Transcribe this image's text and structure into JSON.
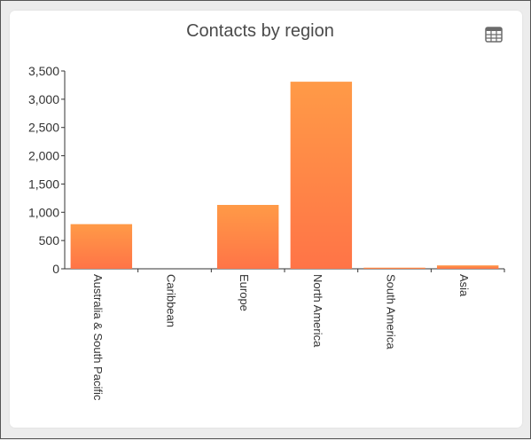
{
  "widget": {
    "table_toggle_icon": "table-grid-icon"
  },
  "chart_data": {
    "type": "bar",
    "title": "Contacts by region",
    "xlabel": "",
    "ylabel": "",
    "categories": [
      "Australia & South Pacific",
      "Caribbean",
      "Europe",
      "North America",
      "South America",
      "Asia"
    ],
    "values": [
      790,
      0,
      1130,
      3310,
      20,
      60
    ],
    "ylim": [
      0,
      3500
    ],
    "yticks": [
      0,
      500,
      1000,
      1500,
      2000,
      2500,
      3000,
      3500
    ],
    "ytick_labels": [
      "0",
      "500",
      "1,000",
      "1,500",
      "2,000",
      "2,500",
      "3,000",
      "3,500"
    ],
    "grid": false,
    "legend": "none",
    "colors": {
      "bar_top": "#ff9a47",
      "bar_bottom": "#ff7447",
      "axis": "#333333",
      "text": "#333333"
    }
  }
}
